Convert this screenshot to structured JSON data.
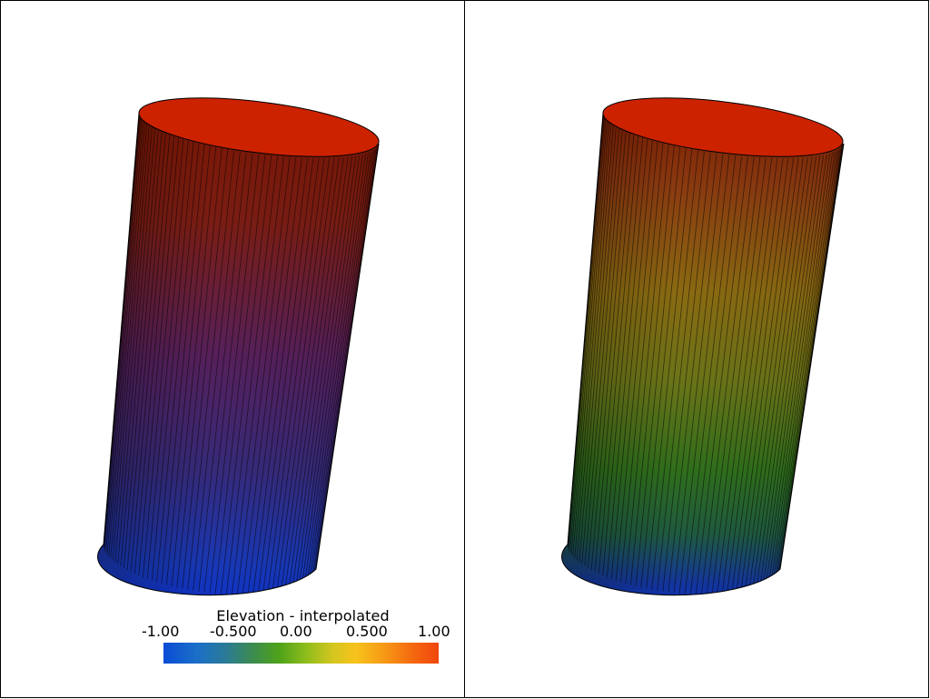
{
  "scalar_bar": {
    "title": "Elevation - interpolated",
    "ticks": [
      "-1.00",
      "-0.500",
      "0.00",
      "0.500",
      "1.00"
    ],
    "colormap_stops": [
      "#0b4cd6",
      "#3b8a52",
      "#4ea21a",
      "#d7c620",
      "#f79a16",
      "#f0460c"
    ]
  },
  "viewports": [
    {
      "name": "left",
      "shading": "flat",
      "top_color": "#cc2200",
      "bottom_color": "#0a2fd0"
    },
    {
      "name": "right",
      "shading": "interpolated",
      "top_color": "#cc2200",
      "bottom_color": "#0a2fd0"
    }
  ]
}
